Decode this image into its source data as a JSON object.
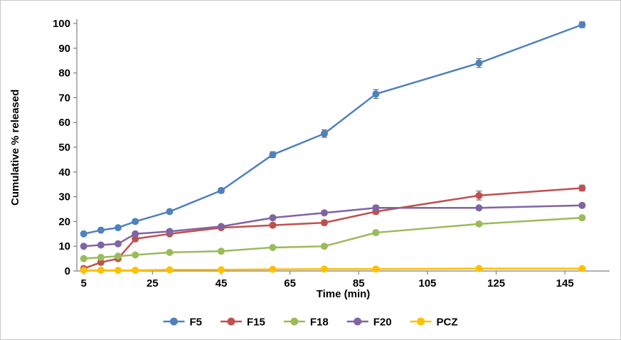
{
  "chart_data": {
    "type": "line",
    "title": "",
    "xlabel": "Time (min)",
    "ylabel": "Cumulative % released",
    "x": [
      5,
      10,
      15,
      20,
      30,
      45,
      60,
      75,
      90,
      120,
      150
    ],
    "series": [
      {
        "name": "F5",
        "color": "#4F81BD",
        "values": [
          15,
          16.5,
          17.5,
          20,
          24,
          32.5,
          47,
          55.5,
          71.5,
          84,
          99.5
        ],
        "errors": [
          0.5,
          0.5,
          0.5,
          0.8,
          0.8,
          1,
          1.2,
          1.5,
          1.8,
          1.8,
          1.2
        ]
      },
      {
        "name": "F15",
        "color": "#C0504D",
        "values": [
          1,
          3.5,
          5,
          13,
          15,
          17.5,
          18.5,
          19.5,
          24,
          30.5,
          33.5
        ],
        "errors": [
          0.3,
          0.4,
          0.5,
          1,
          0.8,
          0.8,
          0.8,
          1,
          1,
          1.8,
          1.2
        ]
      },
      {
        "name": "F18",
        "color": "#9BBB59",
        "values": [
          5,
          5.5,
          6,
          6.5,
          7.5,
          8,
          9.5,
          10,
          15.5,
          19,
          21.5
        ],
        "errors": [
          0.3,
          0.3,
          0.3,
          0.4,
          0.4,
          0.5,
          0.5,
          0.6,
          0.8,
          0.8,
          0.8
        ]
      },
      {
        "name": "F20",
        "color": "#8064A2",
        "values": [
          10,
          10.5,
          11,
          15,
          16,
          18,
          21.5,
          23.5,
          25.5,
          25.5,
          26.5
        ],
        "errors": [
          0.4,
          0.4,
          0.5,
          0.6,
          0.6,
          0.6,
          0.8,
          0.8,
          1,
          0.8,
          0.8
        ]
      },
      {
        "name": "PCZ",
        "color": "#FFC000",
        "values": [
          0.3,
          0.3,
          0.3,
          0.3,
          0.5,
          0.5,
          0.7,
          0.8,
          0.8,
          1,
          1
        ],
        "errors": [
          0.1,
          0.1,
          0.1,
          0.1,
          0.1,
          0.2,
          0.2,
          0.2,
          0.2,
          0.2,
          0.2
        ]
      }
    ],
    "x_ticks": [
      5,
      25,
      45,
      65,
      85,
      105,
      125,
      145
    ],
    "y_ticks": [
      0,
      10,
      20,
      30,
      40,
      50,
      60,
      70,
      80,
      90,
      100
    ],
    "xlim": [
      3,
      158
    ],
    "ylim": [
      0,
      100
    ],
    "grid": false,
    "legend_position": "bottom"
  },
  "colors": {
    "axis": "#808080",
    "error_bar": "#595959",
    "text": "#000000",
    "border": "#c8c8c8",
    "background": "#ffffff"
  }
}
